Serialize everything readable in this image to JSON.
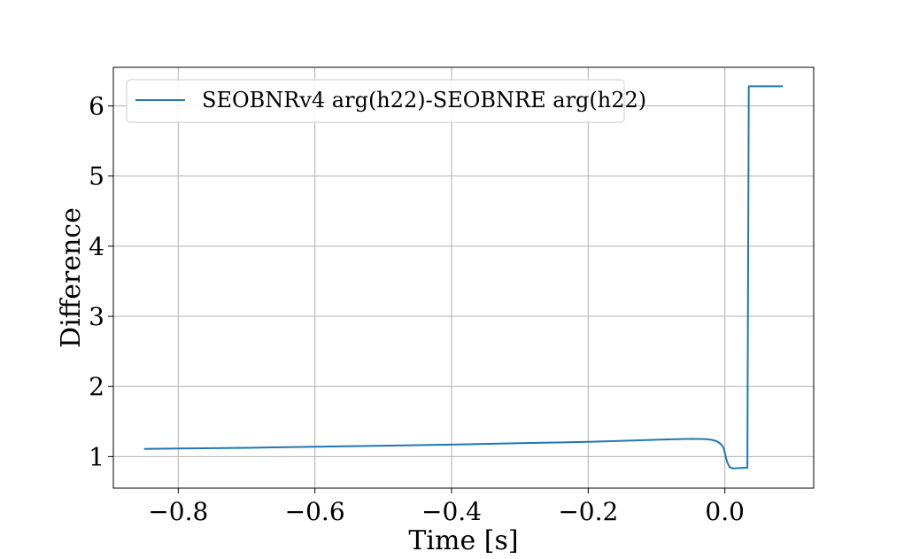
{
  "chart_data": {
    "type": "line",
    "title": "",
    "xlabel": "Time [s]",
    "ylabel": "Difference",
    "xlim": [
      -0.895,
      0.13
    ],
    "ylim": [
      0.55,
      6.55
    ],
    "grid": true,
    "legend_placement": "top-left",
    "x_ticks": [
      -0.8,
      -0.6,
      -0.4,
      -0.2,
      0.0
    ],
    "x_tick_labels": [
      "−0.8",
      "−0.6",
      "−0.4",
      "−0.2",
      "0.0"
    ],
    "y_ticks": [
      1,
      2,
      3,
      4,
      5,
      6
    ],
    "y_tick_labels": [
      "1",
      "2",
      "3",
      "4",
      "5",
      "6"
    ],
    "series": [
      {
        "name": "SEOBNRv4 arg(h22)-SEOBNRE arg(h22)",
        "color": "#1f77b4",
        "x": [
          -0.85,
          -0.8,
          -0.7,
          -0.6,
          -0.5,
          -0.4,
          -0.3,
          -0.2,
          -0.15,
          -0.1,
          -0.07,
          -0.05,
          -0.03,
          -0.02,
          -0.012,
          -0.006,
          -0.002,
          0.0,
          0.003,
          0.007,
          0.012,
          0.02,
          0.03,
          0.033,
          0.034,
          0.035,
          0.05,
          0.07,
          0.085
        ],
        "y": [
          1.11,
          1.115,
          1.125,
          1.14,
          1.155,
          1.17,
          1.19,
          1.21,
          1.225,
          1.24,
          1.248,
          1.252,
          1.25,
          1.24,
          1.22,
          1.18,
          1.13,
          1.05,
          0.93,
          0.85,
          0.83,
          0.835,
          0.84,
          0.84,
          3.5,
          6.28,
          6.28,
          6.28,
          6.28
        ]
      }
    ]
  }
}
